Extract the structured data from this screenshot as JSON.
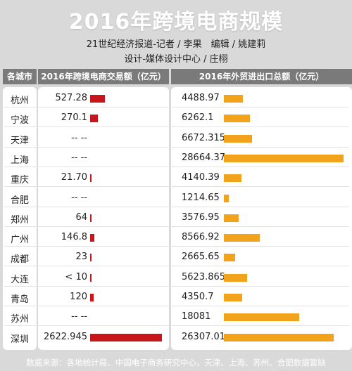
{
  "title": "2016年跨境电商规模",
  "credits": {
    "line1": "21世纪经济报道-记者 / 李果　编辑 / 姚建莉",
    "line2": "设计-媒体设计中心 / 庄栩"
  },
  "headers": {
    "city": "各城市",
    "ecom": "2016年跨境电商交易额（亿元）",
    "trade": "2016年外贸进出口总额（亿元）"
  },
  "colors": {
    "ecom_bar": "#c8161d",
    "trade_bar": "#f2a21b"
  },
  "chart_data": {
    "type": "bar",
    "categories": [
      "杭州",
      "宁波",
      "天津",
      "上海",
      "重庆",
      "合肥",
      "郑州",
      "广州",
      "成都",
      "大连",
      "青岛",
      "苏州",
      "深圳"
    ],
    "series": [
      {
        "name": "2016年跨境电商交易额（亿元）",
        "labels": [
          "527.28",
          "270.1",
          "-- --",
          "-- --",
          "21.70",
          "-- --",
          "64",
          "146.8",
          "23",
          "< 10",
          "120",
          "-- --",
          "2622.945"
        ],
        "values": [
          527.28,
          270.1,
          null,
          null,
          21.7,
          null,
          64,
          146.8,
          23,
          10,
          120,
          null,
          2622.945
        ]
      },
      {
        "name": "2016年外贸进出口总额（亿元）",
        "labels": [
          "4488.97",
          "6262.1",
          "6672.315",
          "28664.37",
          "4140.39",
          "1214.65",
          "3576.95",
          "8566.92",
          "2665.65",
          "5623.865",
          "4350.7",
          "18081",
          "26307.01"
        ],
        "values": [
          4488.97,
          6262.1,
          6672.315,
          28664.37,
          4140.39,
          1214.65,
          3576.95,
          8566.92,
          2665.65,
          5623.865,
          4350.7,
          18081,
          26307.01
        ]
      }
    ]
  },
  "source": "数据来源：各地统计局、中国电子商务研究中心，天津、上海、苏州、合肥数据暂缺"
}
